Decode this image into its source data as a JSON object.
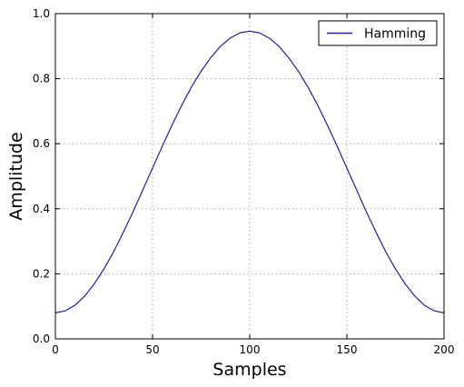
{
  "chart_data": {
    "type": "line",
    "title": "",
    "xlabel": "Samples",
    "ylabel": "Amplitude",
    "xlim": [
      0,
      200
    ],
    "ylim": [
      0.0,
      1.0
    ],
    "xticks": [
      0,
      50,
      100,
      150,
      200
    ],
    "xtick_labels": [
      "0",
      "50",
      "100",
      "150",
      "200"
    ],
    "yticks": [
      0.0,
      0.2,
      0.4,
      0.6,
      0.8,
      1.0
    ],
    "ytick_labels": [
      "0.0",
      "0.2",
      "0.4",
      "0.6",
      "0.8",
      "1.0"
    ],
    "grid": true,
    "legend_position": "top-right",
    "series": [
      {
        "name": "Hamming",
        "color": "#1f1f9f",
        "x": [
          0,
          5,
          10,
          15,
          20,
          25,
          30,
          35,
          40,
          45,
          50,
          55,
          60,
          65,
          70,
          75,
          80,
          85,
          90,
          95,
          100,
          105,
          110,
          115,
          120,
          125,
          130,
          135,
          140,
          145,
          150,
          155,
          160,
          165,
          170,
          175,
          180,
          185,
          190,
          195,
          200
        ],
        "y": [
          0.08,
          0.086,
          0.103,
          0.131,
          0.169,
          0.215,
          0.268,
          0.328,
          0.391,
          0.458,
          0.525,
          0.592,
          0.657,
          0.718,
          0.774,
          0.823,
          0.865,
          0.9,
          0.925,
          0.941,
          0.946,
          0.941,
          0.925,
          0.9,
          0.865,
          0.823,
          0.774,
          0.718,
          0.657,
          0.592,
          0.525,
          0.458,
          0.391,
          0.328,
          0.268,
          0.215,
          0.169,
          0.131,
          0.103,
          0.086,
          0.08
        ]
      }
    ]
  }
}
